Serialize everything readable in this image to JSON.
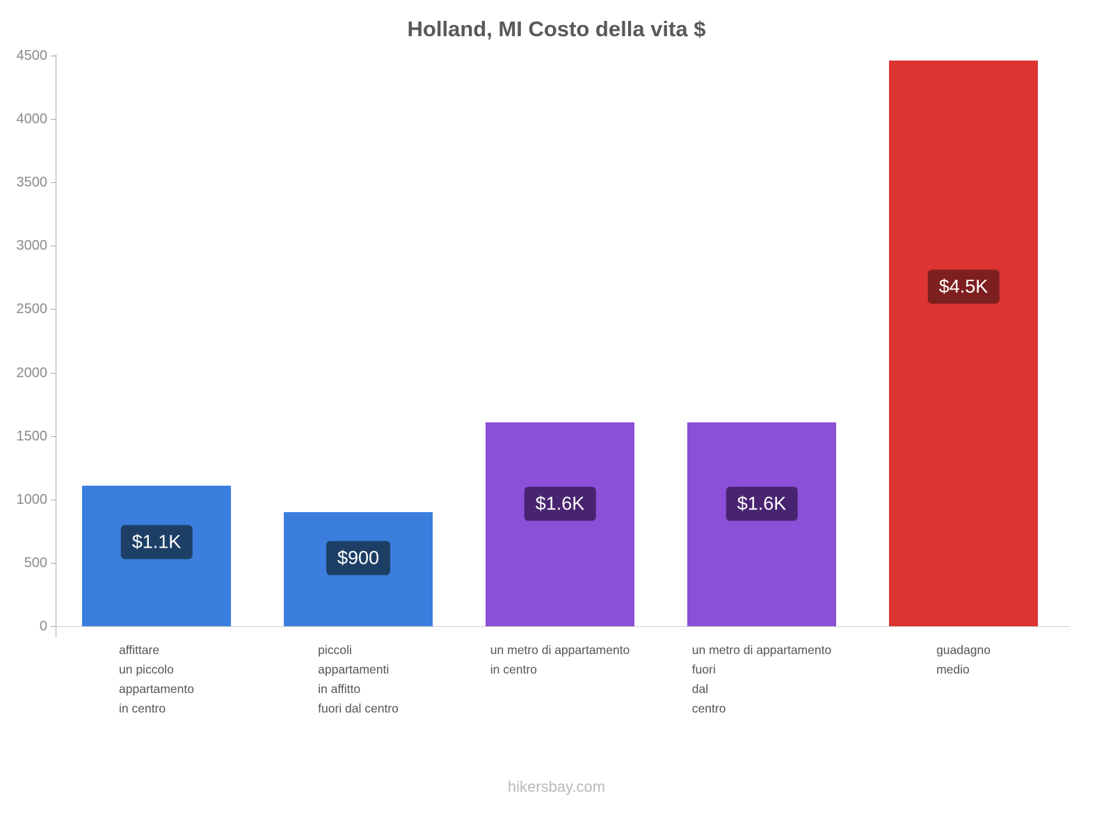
{
  "title": "Holland, MI Costo della vita $",
  "footer": "hikersbay.com",
  "chart_data": {
    "type": "bar",
    "title": "Holland, MI Costo della vita $",
    "categories": [
      "affittare un piccolo appartamento in centro",
      "piccoli appartamenti in affitto fuori dal centro",
      "un metro di appartamento in centro",
      "un metro di appartamento fuori dal centro",
      "guadagno medio"
    ],
    "category_lines": [
      [
        "affittare",
        "un piccolo",
        "appartamento",
        "in centro"
      ],
      [
        "piccoli",
        "appartamenti",
        "in affitto",
        "fuori dal centro"
      ],
      [
        "un metro di appartamento",
        "in centro"
      ],
      [
        "un metro di appartamento",
        "fuori",
        "dal",
        "centro"
      ],
      [
        "guadagno",
        "medio"
      ]
    ],
    "values": [
      1110,
      900,
      1610,
      1610,
      4460
    ],
    "data_labels": [
      "$1.1K",
      "$900",
      "$1.6K",
      "$1.6K",
      "$4.5K"
    ],
    "bar_colors": [
      "#3b7edd",
      "#3b7edd",
      "#8c4fd8",
      "#8c4fd8",
      "#de3333"
    ],
    "label_bg_colors": [
      "#1d3f66",
      "#1d3f66",
      "#482470",
      "#482470",
      "#7e1f1f"
    ],
    "xlabel": "",
    "ylabel": "",
    "ylim": [
      0,
      4500
    ],
    "yticks": [
      0,
      500,
      1000,
      1500,
      2000,
      2500,
      3000,
      3500,
      4000,
      4500
    ],
    "grid": false,
    "legend": false,
    "currency": "$"
  }
}
